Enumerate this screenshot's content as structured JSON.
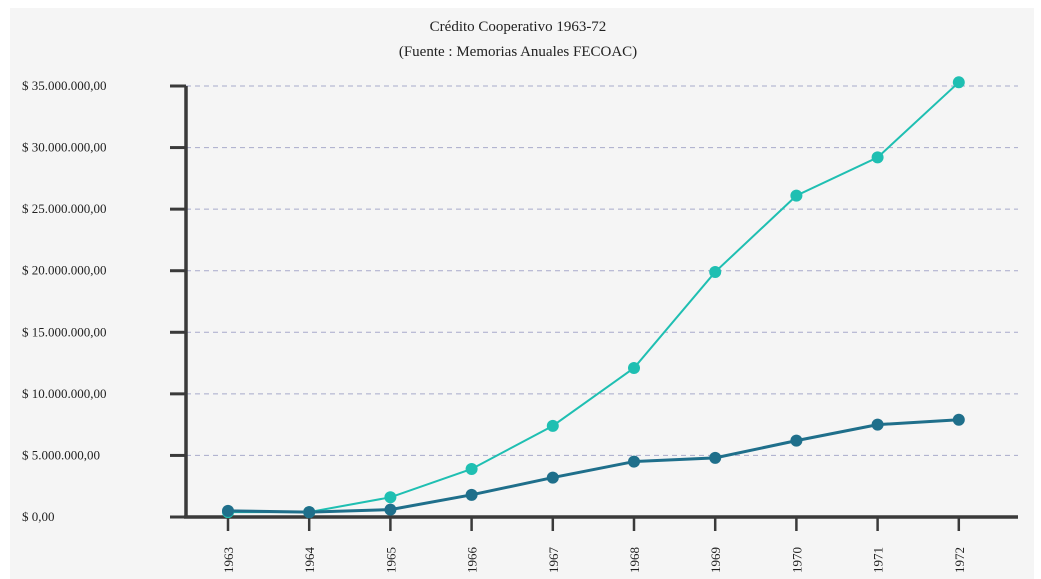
{
  "chart_data": {
    "type": "line",
    "title": "Crédito Cooperativo 1963-72",
    "subtitle": "(Fuente : Memorias Anuales FECOAC)",
    "categories": [
      "1963",
      "1964",
      "1965",
      "1966",
      "1967",
      "1968",
      "1969",
      "1970",
      "1971",
      "1972"
    ],
    "y_tick_labels": [
      "$ 0,00",
      "$   5.000.000,00",
      "$ 10.000.000,00",
      "$ 15.000.000,00",
      "$ 20.000.000,00",
      "$ 25.000.000,00",
      "$ 30.000.000,00",
      "$ 35.000.000,00"
    ],
    "y_ticks": [
      0,
      5000000,
      10000000,
      15000000,
      20000000,
      25000000,
      30000000,
      35000000
    ],
    "ylim": [
      0,
      35000000
    ],
    "grid": "horizontal dashed",
    "series": [
      {
        "color": "#1fbfb2",
        "values": [
          400000,
          400000,
          1600000,
          3900000,
          7400000,
          12100000,
          19900000,
          26100000,
          29200000,
          35300000
        ]
      },
      {
        "color": "#1f6f8b",
        "values": [
          500000,
          400000,
          600000,
          1800000,
          3200000,
          4500000,
          4800000,
          6200000,
          7500000,
          7900000
        ]
      }
    ]
  }
}
